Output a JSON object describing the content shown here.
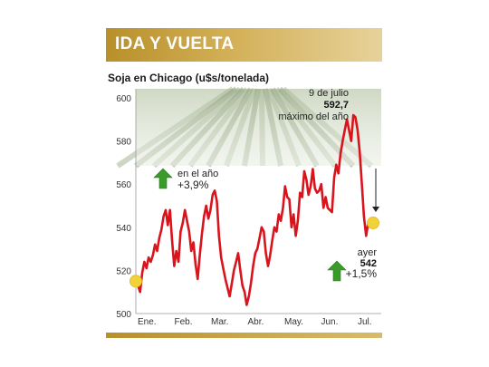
{
  "header": {
    "title": "IDA Y VUELTA"
  },
  "colors": {
    "accent": "#c9a23f",
    "line": "#d8141d",
    "marker": "#f2d23a",
    "arrow_up": "#3a9a2a"
  },
  "chart_data": {
    "type": "line",
    "title": "Soja en Chicago (u$s/tonelada)",
    "xlabel": "",
    "ylabel": "",
    "ylim": [
      500,
      600
    ],
    "yticks": [
      500,
      520,
      540,
      560,
      580,
      600
    ],
    "months": [
      "Ene.",
      "Feb.",
      "Mar.",
      "Abr.",
      "May.",
      "Jun.",
      "Jul."
    ],
    "grid": false,
    "series": [
      {
        "values": [
          515,
          513,
          510,
          519,
          524,
          521,
          526,
          524,
          527,
          532,
          529,
          535,
          539,
          545,
          548,
          541,
          548,
          534,
          522,
          529,
          524,
          538,
          542,
          548,
          543,
          538,
          529,
          533,
          523,
          516,
          527,
          537,
          545,
          550,
          544,
          548,
          555,
          557,
          552,
          536,
          526,
          521,
          516,
          512,
          508,
          514,
          520,
          524,
          528,
          520,
          513,
          510,
          504,
          508,
          514,
          522,
          528,
          530,
          535,
          540,
          538,
          528,
          522,
          527,
          534,
          540,
          538,
          546,
          543,
          549,
          559,
          554,
          553,
          540,
          546,
          536,
          543,
          556,
          554,
          566,
          562,
          555,
          559,
          567,
          558,
          556,
          557,
          560,
          549,
          554,
          549,
          548,
          547,
          563,
          569,
          565,
          574,
          580,
          585,
          590,
          585,
          580,
          592,
          591,
          585,
          575,
          560,
          545,
          536,
          542,
          542
        ]
      }
    ],
    "annotations": {
      "max_date": "9 de julio",
      "max_value": "592,7",
      "max_label": "máximo del año",
      "ytd_label": "en el año",
      "ytd_value": "+3,9%",
      "last_label": "ayer",
      "last_value": "542",
      "last_change": "+1,5%"
    }
  }
}
